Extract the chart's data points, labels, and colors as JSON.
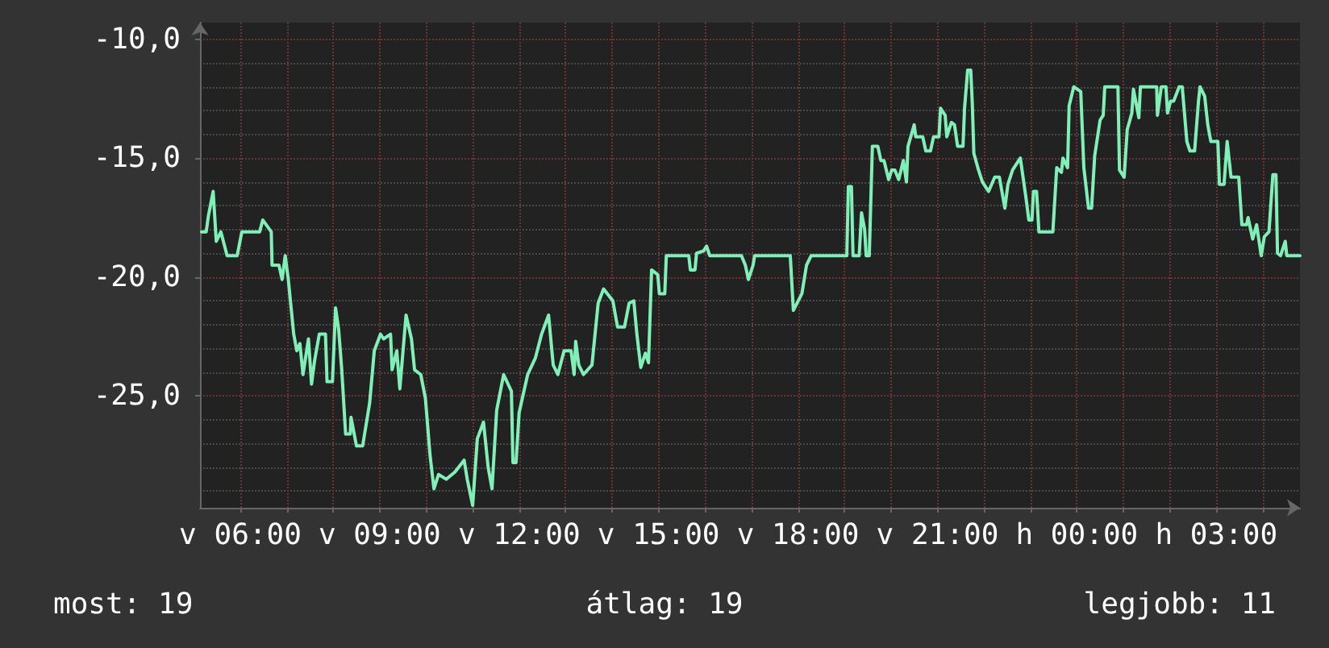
{
  "chart_data": {
    "type": "line",
    "x": [
      "--03-17T05:10",
      "--03-17T05:16",
      "--03-17T05:19",
      "--03-17T05:25",
      "--03-17T05:26",
      "--03-17T05:29",
      "--03-17T05:35",
      "--03-17T05:43",
      "--03-17T05:56",
      "--03-17T06:02",
      "--03-17T06:25",
      "--03-17T06:29",
      "--03-17T06:40",
      "--03-17T06:41",
      "--03-17T06:50",
      "--03-17T06:54",
      "--03-17T06:58",
      "--03-17T07:02",
      "--03-17T07:09",
      "--03-17T07:13",
      "--03-17T07:17",
      "--03-17T07:21",
      "--03-17T07:28",
      "--03-17T07:32",
      "--03-17T07:36",
      "--03-17T07:42",
      "--03-17T07:50",
      "--03-17T07:52",
      "--03-17T07:59",
      "--03-17T08:03",
      "--03-17T08:07",
      "--03-17T08:11",
      "--03-17T08:16",
      "--03-17T08:22",
      "--03-17T08:23",
      "--03-17T08:30",
      "--03-17T08:38",
      "--03-17T08:43",
      "--03-17T08:47",
      "--03-17T08:53",
      "--03-17T09:01",
      "--03-17T09:05",
      "--03-17T09:14",
      "--03-17T09:16",
      "--03-17T09:22",
      "--03-17T09:26",
      "--03-17T09:34",
      "--03-17T09:41",
      "--03-17T09:45",
      "--03-17T09:53",
      "--03-17T09:59",
      "--03-17T10:05",
      "--03-17T10:10",
      "--03-17T10:16",
      "--03-17T10:26",
      "--03-17T10:37",
      "--03-17T10:49",
      "--03-17T10:53",
      "--03-17T11:00",
      "--03-17T11:06",
      "--03-17T11:14",
      "--03-17T11:20",
      "--03-17T11:25",
      "--03-17T11:31",
      "--03-17T11:40",
      "--03-17T11:50",
      "--03-17T11:52",
      "--03-17T11:56",
      "--03-17T12:00",
      "--03-17T12:11",
      "--03-17T12:21",
      "--03-17T12:29",
      "--03-17T12:38",
      "--03-17T12:44",
      "--03-17T12:50",
      "--03-17T12:58",
      "--03-17T13:07",
      "--03-17T13:11",
      "--03-17T13:13",
      "--03-17T13:17",
      "--03-17T13:23",
      "--03-17T13:34",
      "--03-17T13:42",
      "--03-17T13:49",
      "--03-17T14:01",
      "--03-17T14:07",
      "--03-17T14:16",
      "--03-17T14:22",
      "--03-17T14:28",
      "--03-17T14:32",
      "--03-17T14:37",
      "--03-17T14:43",
      "--03-17T14:47",
      "--03-17T14:51",
      "--03-17T14:59",
      "--03-17T15:01",
      "--03-17T15:08",
      "--03-17T15:10",
      "--03-17T15:39",
      "--03-17T15:41",
      "--03-17T15:47",
      "--03-17T15:49",
      "--03-17T15:58",
      "--03-17T16:02",
      "--03-17T16:06",
      "--03-17T16:47",
      "--03-17T16:52",
      "--03-17T16:56",
      "--03-17T17:02",
      "--03-17T17:04",
      "--03-17T17:50",
      "--03-17T17:54",
      "--03-17T18:05",
      "--03-17T18:11",
      "--03-17T18:17",
      "--03-17T19:03",
      "--03-17T19:05",
      "--03-17T19:09",
      "--03-17T19:11",
      "--03-17T19:19",
      "--03-17T19:22",
      "--03-17T19:26",
      "--03-17T19:28",
      "--03-17T19:32",
      "--03-17T19:36",
      "--03-17T19:43",
      "--03-17T19:47",
      "--03-17T19:51",
      "--03-17T19:57",
      "--03-17T20:01",
      "--03-17T20:05",
      "--03-17T20:10",
      "--03-17T20:16",
      "--03-17T20:20",
      "--03-17T20:22",
      "--03-17T20:30",
      "--03-17T20:32",
      "--03-17T20:41",
      "--03-17T20:45",
      "--03-17T20:51",
      "--03-17T20:55",
      "--03-17T21:02",
      "--03-17T21:04",
      "--03-17T21:10",
      "--03-17T21:12",
      "--03-17T21:18",
      "--03-17T21:22",
      "--03-17T21:26",
      "--03-17T21:33",
      "--03-17T21:35",
      "--03-17T21:39",
      "--03-17T21:43",
      "--03-17T21:45",
      "--03-17T21:47",
      "--03-17T21:53",
      "--03-17T21:58",
      "--03-17T22:06",
      "--03-17T22:14",
      "--03-17T22:20",
      "--03-17T22:27",
      "--03-17T22:31",
      "--03-17T22:37",
      "--03-17T22:47",
      "--03-17T22:54",
      "--03-17T22:58",
      "--03-17T23:02",
      "--03-17T23:04",
      "--03-17T23:08",
      "--03-17T23:11",
      "--03-17T23:29",
      "--03-17T23:34",
      "--03-17T23:40",
      "--03-17T23:42",
      "--03-17T23:48",
      "--03-17T23:50",
      "--03-17T23:56",
      "--03-18T00:05",
      "--03-18T00:09",
      "--03-18T00:15",
      "--03-18T00:19",
      "--03-18T00:23",
      "--03-18T00:30",
      "--03-18T00:34",
      "--03-18T00:36",
      "--03-18T00:53",
      "--03-18T00:55",
      "--03-18T01:01",
      "--03-18T01:05",
      "--03-18T01:11",
      "--03-18T01:13",
      "--03-18T01:20",
      "--03-18T01:22",
      "--03-18T01:43",
      "--03-18T01:44",
      "--03-18T01:49",
      "--03-18T01:55",
      "--03-18T01:57",
      "--03-18T02:01",
      "--03-18T02:05",
      "--03-18T02:12",
      "--03-18T02:16",
      "--03-18T02:22",
      "--03-18T02:26",
      "--03-18T02:32",
      "--03-18T02:37",
      "--03-18T02:39",
      "--03-18T02:45",
      "--03-18T02:49",
      "--03-18T02:53",
      "--03-18T03:02",
      "--03-18T03:04",
      "--03-18T03:10",
      "--03-18T03:14",
      "--03-18T03:19",
      "--03-18T03:29",
      "--03-18T03:33",
      "--03-18T03:39",
      "--03-18T03:41",
      "--03-18T03:47",
      "--03-18T03:52",
      "--03-18T03:58",
      "--03-18T04:02",
      "--03-18T04:08",
      "--03-18T04:13",
      "--03-18T04:17",
      "--03-18T04:19",
      "--03-18T04:23",
      "--03-18T04:29",
      "--03-18T04:31",
      "--03-18T04:48"
    ],
    "values": [
      -18.1,
      -18.1,
      -17.4,
      -16.4,
      -16.4,
      -18.5,
      -18.1,
      -19.1,
      -19.1,
      -18.1,
      -18.1,
      -17.6,
      -18.1,
      -19.5,
      -19.5,
      -20.1,
      -19.1,
      -20.1,
      -22.4,
      -23.1,
      -22.8,
      -24.1,
      -22.6,
      -24.5,
      -23.5,
      -22.4,
      -22.4,
      -24.4,
      -24.4,
      -21.3,
      -22.2,
      -23.9,
      -26.6,
      -26.6,
      -25.9,
      -27.1,
      -27.1,
      -26.1,
      -25.3,
      -23.1,
      -22.4,
      -22.6,
      -22.4,
      -23.9,
      -23.1,
      -24.7,
      -21.6,
      -22.6,
      -23.9,
      -24.1,
      -25.1,
      -27.5,
      -28.9,
      -28.3,
      -28.5,
      -28.2,
      -27.7,
      -28.5,
      -29.6,
      -26.8,
      -26.1,
      -28.0,
      -28.9,
      -25.6,
      -24.1,
      -24.8,
      -27.8,
      -27.8,
      -25.7,
      -24.1,
      -23.4,
      -22.4,
      -21.6,
      -23.7,
      -24.1,
      -23.1,
      -23.1,
      -24.1,
      -22.7,
      -23.7,
      -24.1,
      -23.7,
      -21.1,
      -20.5,
      -21.0,
      -22.1,
      -22.1,
      -21.1,
      -21.0,
      -22.4,
      -23.8,
      -23.2,
      -23.6,
      -19.7,
      -19.9,
      -20.7,
      -20.7,
      -19.1,
      -19.1,
      -19.7,
      -19.7,
      -19.0,
      -18.9,
      -18.7,
      -19.1,
      -19.1,
      -19.5,
      -20.1,
      -19.5,
      -19.1,
      -19.1,
      -21.4,
      -20.7,
      -19.5,
      -19.1,
      -19.1,
      -16.2,
      -16.2,
      -19.1,
      -19.1,
      -17.3,
      -18.0,
      -19.1,
      -19.1,
      -14.5,
      -14.5,
      -15.1,
      -15.1,
      -15.9,
      -15.5,
      -15.5,
      -15.9,
      -15.1,
      -16.0,
      -14.5,
      -13.6,
      -14.1,
      -14.1,
      -14.7,
      -14.7,
      -14.1,
      -14.1,
      -12.9,
      -13.2,
      -14.1,
      -13.5,
      -13.6,
      -14.5,
      -14.5,
      -12.9,
      -11.3,
      -11.3,
      -12.7,
      -14.8,
      -15.5,
      -16.0,
      -16.4,
      -15.8,
      -15.8,
      -17.1,
      -16.1,
      -15.5,
      -15.0,
      -16.6,
      -17.6,
      -17.6,
      -16.4,
      -16.4,
      -18.1,
      -18.1,
      -15.4,
      -15.6,
      -15.0,
      -15.4,
      -12.8,
      -12.0,
      -12.2,
      -15.4,
      -17.1,
      -17.1,
      -14.9,
      -13.4,
      -13.2,
      -12.0,
      -12.0,
      -15.5,
      -15.8,
      -13.8,
      -13.1,
      -12.1,
      -13.3,
      -12.0,
      -12.0,
      -13.2,
      -12.0,
      -12.0,
      -13.1,
      -12.6,
      -12.6,
      -12.0,
      -12.0,
      -14.3,
      -14.7,
      -14.7,
      -12.6,
      -12.0,
      -12.4,
      -13.6,
      -14.3,
      -14.3,
      -16.1,
      -16.1,
      -14.3,
      -15.8,
      -15.8,
      -17.8,
      -17.8,
      -17.5,
      -18.4,
      -17.8,
      -19.1,
      -18.3,
      -18.1,
      -15.7,
      -15.7,
      -19.0,
      -19.1,
      -18.5,
      -19.1,
      -19.1
    ],
    "color": "#80f0b8",
    "xlim": [
      "--03-17T05:08",
      "--03-18T04:48"
    ],
    "xticks": [
      {
        "value": "--03-17T06:00",
        "label": "v 06:00"
      },
      {
        "value": "--03-17T07:00",
        "label": null
      },
      {
        "value": "--03-17T08:00",
        "label": null
      },
      {
        "value": "--03-17T09:00",
        "label": "v 09:00"
      },
      {
        "value": "--03-17T10:00",
        "label": null
      },
      {
        "value": "--03-17T11:00",
        "label": null
      },
      {
        "value": "--03-17T12:00",
        "label": "v 12:00"
      },
      {
        "value": "--03-17T13:00",
        "label": null
      },
      {
        "value": "--03-17T14:00",
        "label": null
      },
      {
        "value": "--03-17T15:00",
        "label": "v 15:00"
      },
      {
        "value": "--03-17T16:00",
        "label": null
      },
      {
        "value": "--03-17T17:00",
        "label": null
      },
      {
        "value": "--03-17T18:00",
        "label": "v 18:00"
      },
      {
        "value": "--03-17T19:00",
        "label": null
      },
      {
        "value": "--03-17T20:00",
        "label": null
      },
      {
        "value": "--03-17T21:00",
        "label": "v 21:00"
      },
      {
        "value": "--03-17T22:00",
        "label": null
      },
      {
        "value": "--03-17T23:00",
        "label": null
      },
      {
        "value": "--03-18T00:00",
        "label": "h 00:00"
      },
      {
        "value": "--03-18T01:00",
        "label": null
      },
      {
        "value": "--03-18T02:00",
        "label": null
      },
      {
        "value": "--03-18T03:00",
        "label": "h 03:00"
      },
      {
        "value": "--03-18T04:00",
        "label": null
      }
    ],
    "ylim": [
      -29.7,
      -9.3
    ],
    "yticks": [
      {
        "value": -10,
        "label": "-10,0"
      },
      {
        "value": -15,
        "label": "-15,0"
      },
      {
        "value": -20,
        "label": "-20,0"
      },
      {
        "value": -25,
        "label": "-25,0"
      }
    ],
    "grid": true,
    "marker": "none",
    "line_style": "solid",
    "annotations": [
      "most: 19",
      "átlag: 19",
      "legjobb: 11"
    ]
  }
}
